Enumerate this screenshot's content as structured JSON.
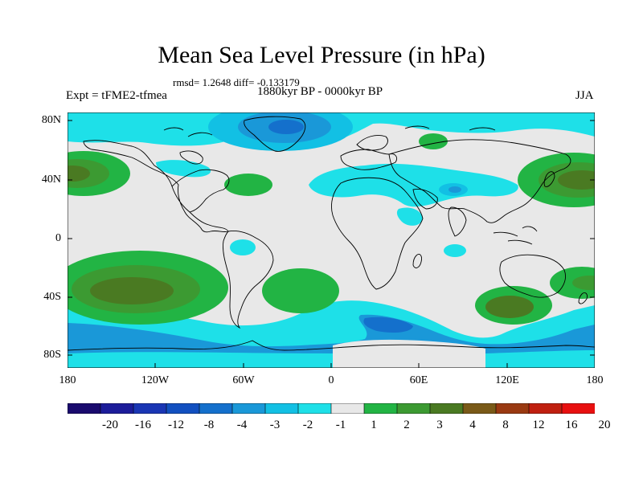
{
  "title": "Mean Sea Level Pressure (in hPa)",
  "stats": "rmsd= 1.2648 diff= -0.133179",
  "experiment": "Expt = tFME2-tfmea",
  "period": "1880kyr BP - 0000kyr BP",
  "season": "JJA",
  "axes": {
    "y_ticks": [
      "80N",
      "40N",
      "0",
      "40S",
      "80S"
    ],
    "x_ticks": [
      "180",
      "120W",
      "60W",
      "0",
      "60E",
      "120E",
      "180"
    ]
  },
  "colorbar": {
    "labels": [
      "-20",
      "-16",
      "-12",
      "-8",
      "-4",
      "-3",
      "-2",
      "-1",
      "1",
      "2",
      "3",
      "4",
      "8",
      "12",
      "16",
      "20"
    ],
    "colors": [
      "#1a0a6e",
      "#1c1c9a",
      "#1a36b4",
      "#1250c0",
      "#1470cc",
      "#1a98d8",
      "#12c0e4",
      "#1ee0e8",
      "#e8e8e8",
      "#22b444",
      "#3c9a32",
      "#4a7a22",
      "#7a5a18",
      "#9a3a12",
      "#c02010",
      "#e81010"
    ]
  },
  "palette": {
    "ocean_bg": "#e8e8e8",
    "cyan": "#1ee0e8",
    "light_blue": "#12c0e4",
    "blue": "#1a98d8",
    "green": "#22b444",
    "olive": "#4a7a22",
    "brown": "#7a5a18"
  }
}
